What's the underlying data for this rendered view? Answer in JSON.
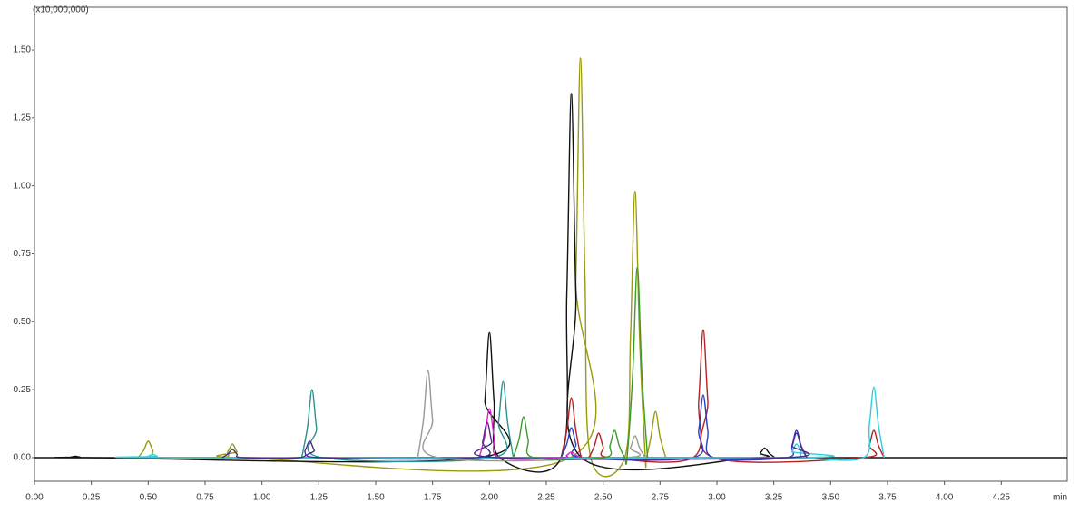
{
  "chart_data": {
    "type": "line",
    "y_unit_label": "(x10,000,000)",
    "x_axis_label": "min",
    "xlim": [
      0,
      4.54
    ],
    "ylim": [
      -0.087,
      1.657
    ],
    "xticks": [
      {
        "value": 0,
        "label": "0.00"
      },
      0.25,
      {
        "value": 0.5,
        "label": "0.50"
      },
      0.75,
      {
        "value": 1,
        "label": "1.00"
      },
      1.25,
      {
        "value": 1.5,
        "label": "1.50"
      },
      1.75,
      {
        "value": 2,
        "label": "2.00"
      },
      2.25,
      {
        "value": 2.5,
        "label": "2.50"
      },
      2.75,
      {
        "value": 3,
        "label": "3.00"
      },
      3.25,
      {
        "value": 3.5,
        "label": "3.50"
      },
      3.75,
      {
        "value": 4,
        "label": "4.00"
      },
      4.25
    ],
    "yticks": [
      {
        "value": 0,
        "label": "0.00"
      },
      0.25,
      {
        "value": 0.5,
        "label": "0.50"
      },
      0.75,
      {
        "value": 1,
        "label": "1.00"
      },
      1.25,
      {
        "value": 1.5,
        "label": "1.50"
      }
    ],
    "series": [
      {
        "color": "#9a9a10",
        "x": [
          0.455,
          0.48,
          0.5,
          0.52,
          0.545,
          0.825,
          0.85,
          0.87,
          0.89,
          0.915,
          2.355,
          2.38,
          2.4,
          2.42,
          2.445,
          2.595,
          2.62,
          2.64,
          2.66,
          2.685,
          2.69,
          2.71,
          2.73,
          2.75,
          2.775
        ],
        "values": [
          0,
          0.027,
          0.06,
          0.027,
          0,
          0,
          0.022,
          0.05,
          0.022,
          0,
          0,
          0.66,
          1.47,
          0.66,
          0,
          0,
          0.44,
          0.98,
          0.44,
          0,
          0,
          0.076,
          0.17,
          0.076,
          0
        ]
      },
      {
        "color": "#111111",
        "x": [
          0.135,
          0.16,
          0.18,
          0.2,
          0.225,
          1.955,
          1.98,
          2.0,
          2.02,
          2.045,
          2.315,
          2.34,
          2.36,
          2.38,
          2.405,
          3.165,
          3.19,
          3.21,
          3.23,
          3.255
        ],
        "values": [
          0,
          0.002,
          0.005,
          0.002,
          0,
          0,
          0.21,
          0.46,
          0.21,
          0,
          0,
          0.6,
          1.34,
          0.6,
          0,
          0,
          0.016,
          0.035,
          0.016,
          0
        ]
      },
      {
        "color": "#2a9090",
        "x": [
          1.175,
          1.2,
          1.22,
          1.24,
          1.265,
          2.015,
          2.04,
          2.06,
          2.08,
          2.105
        ],
        "values": [
          0,
          0.11,
          0.25,
          0.11,
          0,
          0,
          0.13,
          0.28,
          0.13,
          0
        ]
      },
      {
        "color": "#999999",
        "x": [
          1.685,
          1.71,
          1.73,
          1.75,
          1.775,
          2.595,
          2.62,
          2.64,
          2.66,
          2.685
        ],
        "values": [
          0,
          0.14,
          0.32,
          0.14,
          0,
          0,
          0.036,
          0.08,
          0.036,
          0
        ]
      },
      {
        "color": "#b22222",
        "x": [
          2.315,
          2.34,
          2.36,
          2.38,
          2.405,
          2.435,
          2.46,
          2.48,
          2.5,
          2.525,
          2.895,
          2.92,
          2.94,
          2.96,
          2.985,
          3.645,
          3.67,
          3.69,
          3.71,
          3.735
        ],
        "values": [
          0,
          0.1,
          0.22,
          0.1,
          0,
          0,
          0.04,
          0.09,
          0.04,
          0,
          0,
          0.21,
          0.47,
          0.21,
          0,
          0,
          0.045,
          0.1,
          0.045,
          0
        ]
      },
      {
        "color": "#2a3fc0",
        "x": [
          2.315,
          2.34,
          2.36,
          2.38,
          2.405,
          2.895,
          2.92,
          2.94,
          2.96,
          2.985,
          3.305,
          3.33,
          3.35,
          3.37,
          3.395
        ],
        "values": [
          0,
          0.05,
          0.11,
          0.05,
          0,
          0,
          0.1,
          0.23,
          0.1,
          0,
          0,
          0.04,
          0.09,
          0.04,
          0
        ]
      },
      {
        "color": "#33ccdd",
        "x": [
          0.475,
          0.5,
          0.52,
          0.54,
          0.565,
          3.305,
          3.33,
          3.35,
          3.37,
          3.395,
          3.645,
          3.67,
          3.69,
          3.71,
          3.735
        ],
        "values": [
          0,
          0.005,
          0.012,
          0.005,
          0,
          0,
          0.022,
          0.05,
          0.022,
          0,
          0,
          0.12,
          0.26,
          0.12,
          0
        ]
      },
      {
        "color": "#3a9a2a",
        "x": [
          2.105,
          2.13,
          2.15,
          2.17,
          2.195,
          2.505,
          2.53,
          2.55,
          2.57,
          2.595,
          2.605,
          2.63,
          2.65,
          2.67,
          2.695
        ],
        "values": [
          0,
          0.067,
          0.15,
          0.067,
          0,
          0,
          0.045,
          0.1,
          0.045,
          0,
          0,
          0.31,
          0.7,
          0.31,
          0
        ]
      },
      {
        "color": "#e020d0",
        "x": [
          1.955,
          1.98,
          2.0,
          2.02,
          2.045,
          2.315,
          2.34,
          2.36,
          2.38,
          2.405
        ],
        "values": [
          0,
          0.08,
          0.18,
          0.08,
          0,
          0,
          0.009,
          0.02,
          0.009,
          0
        ]
      },
      {
        "color": "#4b2a8a",
        "x": [
          0.825,
          0.85,
          0.87,
          0.89,
          0.915,
          1.165,
          1.19,
          1.21,
          1.23,
          1.255,
          1.945,
          1.97,
          1.99,
          2.01,
          2.035,
          3.305,
          3.33,
          3.35,
          3.37,
          3.395
        ],
        "values": [
          0,
          0.013,
          0.03,
          0.013,
          0,
          0,
          0.027,
          0.06,
          0.027,
          0,
          0,
          0.058,
          0.13,
          0.058,
          0,
          0,
          0.045,
          0.1,
          0.045,
          0
        ]
      }
    ]
  }
}
